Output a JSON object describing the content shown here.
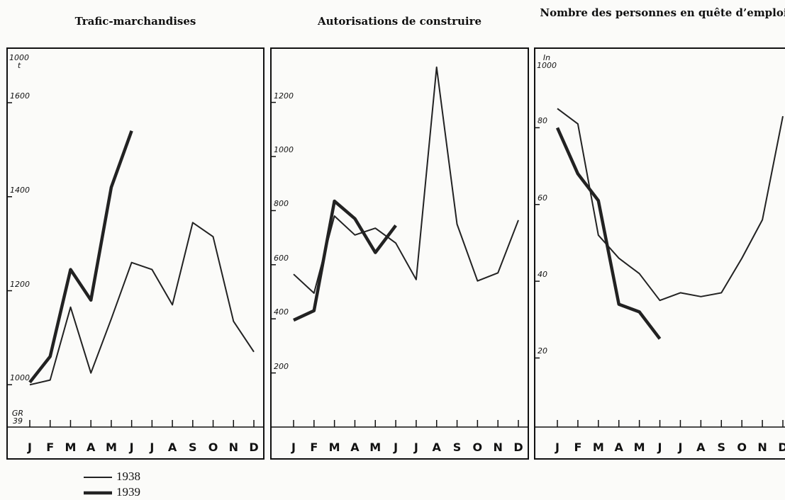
{
  "chart_data": [
    {
      "type": "line",
      "title": "Trafic-marchandises",
      "y_label": "1000 t",
      "annotation": "GR 39",
      "categories": [
        "J",
        "F",
        "M",
        "A",
        "M",
        "J",
        "J",
        "A",
        "S",
        "O",
        "N",
        "D"
      ],
      "ylim": [
        910,
        1710
      ],
      "yticks": [
        1000,
        1200,
        1400,
        1600
      ],
      "series": [
        {
          "name": "1938",
          "color": "#222222",
          "line_width": 2,
          "values": [
            1000,
            1010,
            1165,
            1025,
            1140,
            1260,
            1245,
            1170,
            1345,
            1315,
            1135,
            1070
          ]
        },
        {
          "name": "1939",
          "color": "#222222",
          "line_width": 4.5,
          "values": [
            1005,
            1060,
            1245,
            1180,
            1420,
            1540,
            null,
            null,
            null,
            null,
            null,
            null
          ]
        }
      ]
    },
    {
      "type": "line",
      "title": "Autorisations de construire",
      "categories": [
        "J",
        "F",
        "M",
        "A",
        "M",
        "J",
        "J",
        "A",
        "S",
        "O",
        "N",
        "D"
      ],
      "ylim": [
        0,
        1390
      ],
      "yticks": [
        200,
        400,
        600,
        800,
        1000,
        1200
      ],
      "series": [
        {
          "name": "1938",
          "color": "#222222",
          "line_width": 2,
          "values": [
            565,
            495,
            780,
            710,
            735,
            680,
            545,
            1330,
            750,
            540,
            570,
            765
          ]
        },
        {
          "name": "1939",
          "color": "#222222",
          "line_width": 4.5,
          "values": [
            395,
            430,
            835,
            770,
            645,
            745,
            null,
            null,
            null,
            null,
            null,
            null
          ]
        }
      ]
    },
    {
      "type": "line",
      "title": "Nombre des personnes en quête d’emploi",
      "y_label": "In 1000",
      "categories": [
        "J",
        "F",
        "M",
        "A",
        "M",
        "J",
        "J",
        "A",
        "S",
        "O",
        "N",
        "D"
      ],
      "ylim": [
        2,
        100
      ],
      "yticks": [
        20,
        40,
        60,
        80
      ],
      "series": [
        {
          "name": "1938",
          "color": "#222222",
          "line_width": 2,
          "values": [
            85,
            81,
            52,
            46,
            42,
            35,
            37,
            36,
            37,
            46,
            56,
            83
          ]
        },
        {
          "name": "1939",
          "color": "#222222",
          "line_width": 4.5,
          "values": [
            80,
            68,
            61,
            34,
            32,
            25,
            null,
            null,
            null,
            null,
            null,
            null
          ]
        }
      ]
    }
  ]
}
